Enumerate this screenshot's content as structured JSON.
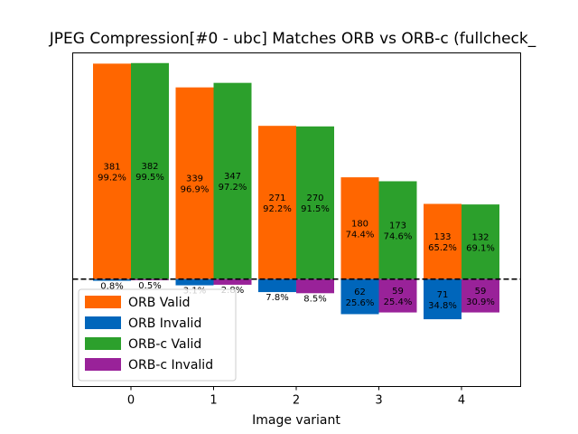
{
  "chart_data": {
    "type": "bar",
    "title": "JPEG Compression[#0 - ubc] Matches ORB vs ORB-c (fullcheck_",
    "xlabel": "Image variant",
    "ylabel": "",
    "categories": [
      "0",
      "1",
      "2",
      "3",
      "4"
    ],
    "series": [
      {
        "name": "ORB Valid",
        "color": "#ff6600",
        "values": [
          381,
          339,
          271,
          180,
          133
        ],
        "percents": [
          "99.2%",
          "96.9%",
          "92.2%",
          "74.4%",
          "65.2%"
        ]
      },
      {
        "name": "ORB Invalid",
        "color": "#0066bb",
        "values": [
          3,
          11,
          23,
          62,
          71
        ],
        "labels": [
          "",
          "",
          "",
          "62",
          "71"
        ],
        "percents": [
          "0.8%",
          "3.1%",
          "7.8%",
          "25.6%",
          "34.8%"
        ]
      },
      {
        "name": "ORB-c Valid",
        "color": "#2ca02c",
        "values": [
          382,
          347,
          270,
          173,
          132
        ],
        "percents": [
          "99.5%",
          "97.2%",
          "91.5%",
          "74.6%",
          "69.1%"
        ]
      },
      {
        "name": "ORB-c Invalid",
        "color": "#992299",
        "values": [
          2,
          10,
          25,
          59,
          59
        ],
        "labels": [
          "",
          "",
          "",
          "59",
          "59"
        ],
        "percents": [
          "0.5%",
          "2.8%",
          "8.5%",
          "25.4%",
          "30.9%"
        ]
      }
    ],
    "ylim": [
      -190,
      400
    ],
    "zero_line": "dashed",
    "legend_placement": "lower-left",
    "grid": false,
    "y_ticks_shown": false
  }
}
